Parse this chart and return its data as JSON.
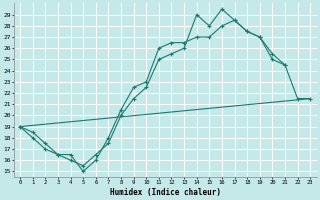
{
  "xlabel": "Humidex (Indice chaleur)",
  "background_color": "#c5e8e8",
  "grid_color": "#ffffff",
  "line_color": "#1a7a6e",
  "xlim": [
    -0.5,
    23.5
  ],
  "ylim": [
    14.5,
    30.0
  ],
  "xticks": [
    0,
    1,
    2,
    3,
    4,
    5,
    6,
    7,
    8,
    9,
    10,
    11,
    12,
    13,
    14,
    15,
    16,
    17,
    18,
    19,
    20,
    21,
    22,
    23
  ],
  "yticks": [
    15,
    16,
    17,
    18,
    19,
    20,
    21,
    22,
    23,
    24,
    25,
    26,
    27,
    28,
    29
  ],
  "line1_x": [
    0,
    1,
    2,
    3,
    4,
    5,
    6,
    7,
    8,
    9,
    10,
    11,
    12,
    13,
    14,
    15,
    16,
    17,
    18,
    19,
    20,
    21
  ],
  "line1_y": [
    19.0,
    18.5,
    17.5,
    16.5,
    16.5,
    15.0,
    16.0,
    18.0,
    20.5,
    22.5,
    23.0,
    26.0,
    26.5,
    26.5,
    27.0,
    27.0,
    28.0,
    28.5,
    27.5,
    27.0,
    25.0,
    24.5
  ],
  "line2_x": [
    0,
    1,
    2,
    3,
    4,
    5,
    6,
    7,
    8,
    9,
    10,
    11,
    12,
    13,
    14,
    15,
    16,
    17,
    18,
    19,
    20,
    21,
    22,
    23
  ],
  "line2_y": [
    19.0,
    18.0,
    17.0,
    16.5,
    16.0,
    15.5,
    16.5,
    17.5,
    20.0,
    21.5,
    22.5,
    25.0,
    25.5,
    26.0,
    29.0,
    28.0,
    29.5,
    28.5,
    27.5,
    27.0,
    25.5,
    24.5,
    21.5,
    21.5
  ],
  "line3_x": [
    0,
    23
  ],
  "line3_y": [
    19.0,
    21.5
  ]
}
